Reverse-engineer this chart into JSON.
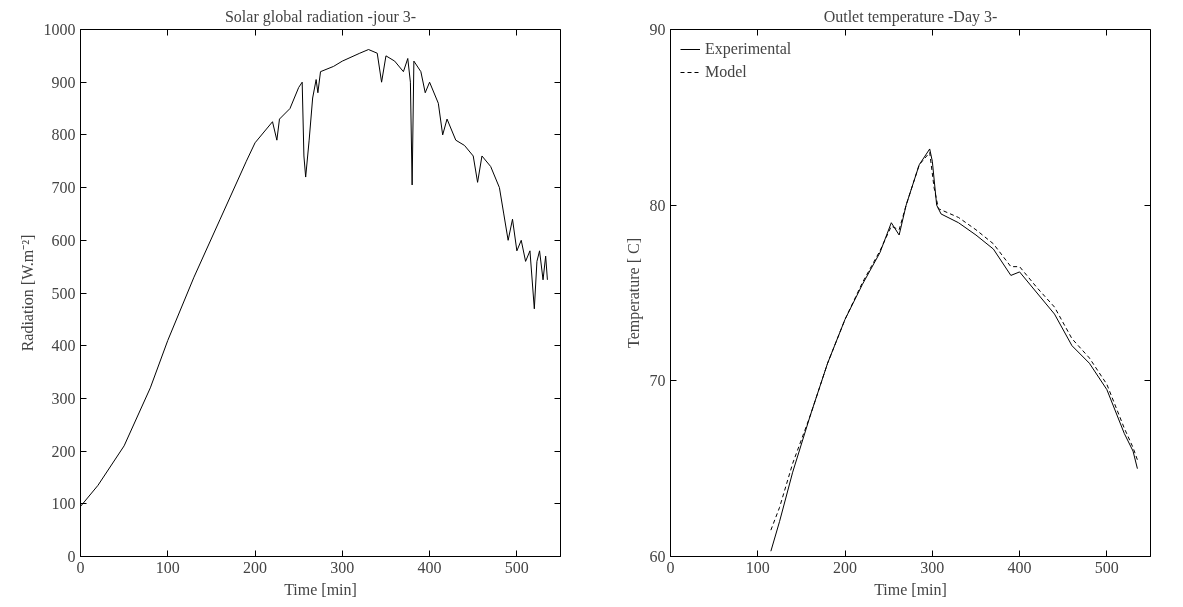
{
  "chart_data": [
    {
      "type": "line",
      "title": "Solar global radiation -jour 3-",
      "xlabel": "Time [min]",
      "ylabel": "Radiation [W.m⁻²]",
      "xlim": [
        0,
        550
      ],
      "xticks": [
        0,
        100,
        200,
        300,
        400,
        500
      ],
      "ylim": [
        0,
        1000
      ],
      "yticks": [
        0,
        100,
        200,
        300,
        400,
        500,
        600,
        700,
        800,
        900,
        1000
      ],
      "grid": false,
      "legend": false,
      "line_style": "solid",
      "series": [
        {
          "color": "#000000",
          "x": [
            0,
            20,
            50,
            80,
            100,
            130,
            160,
            190,
            200,
            220,
            225,
            228,
            240,
            250,
            254,
            256,
            258,
            262,
            266,
            270,
            272,
            275,
            290,
            300,
            320,
            330,
            340,
            345,
            350,
            360,
            370,
            375,
            378,
            380,
            382,
            390,
            395,
            400,
            410,
            415,
            420,
            430,
            440,
            450,
            455,
            460,
            470,
            480,
            485,
            490,
            495,
            500,
            505,
            510,
            515,
            520,
            523,
            526,
            530,
            533,
            535
          ],
          "values": [
            95,
            135,
            210,
            320,
            410,
            530,
            640,
            750,
            785,
            825,
            790,
            830,
            850,
            890,
            900,
            760,
            720,
            790,
            870,
            905,
            880,
            920,
            930,
            940,
            955,
            962,
            955,
            900,
            950,
            940,
            920,
            945,
            900,
            705,
            940,
            920,
            880,
            900,
            860,
            800,
            830,
            790,
            780,
            760,
            710,
            760,
            740,
            700,
            650,
            600,
            640,
            580,
            600,
            560,
            580,
            470,
            560,
            580,
            525,
            570,
            525
          ]
        }
      ]
    },
    {
      "type": "line",
      "title": "Outlet temperature -Day 3-",
      "xlabel": "Time [min]",
      "ylabel": "Temperature [ C]",
      "xlim": [
        0,
        550
      ],
      "xticks": [
        0,
        100,
        200,
        300,
        400,
        500
      ],
      "ylim": [
        60,
        90
      ],
      "yticks": [
        60,
        70,
        80,
        90
      ],
      "grid": false,
      "legend": "top left",
      "series": [
        {
          "name": "Experimental",
          "color": "#000000",
          "line_style": "solid",
          "x": [
            115,
            125,
            140,
            160,
            180,
            200,
            220,
            240,
            253,
            262,
            270,
            285,
            297,
            300,
            305,
            310,
            330,
            350,
            370,
            390,
            400,
            420,
            440,
            460,
            480,
            500,
            520,
            530,
            535
          ],
          "values": [
            60.3,
            62,
            64.8,
            68,
            71,
            73.5,
            75.5,
            77.3,
            79,
            78.3,
            80,
            82.3,
            83.2,
            82.5,
            80,
            79.5,
            79,
            78.3,
            77.5,
            76,
            76.2,
            75,
            73.8,
            72,
            71,
            69.5,
            67,
            66,
            65
          ]
        },
        {
          "name": "Model",
          "color": "#000000",
          "line_style": "dashed",
          "x": [
            115,
            125,
            140,
            160,
            180,
            200,
            220,
            240,
            253,
            262,
            270,
            285,
            297,
            302,
            307,
            330,
            350,
            370,
            390,
            400,
            420,
            440,
            460,
            480,
            500,
            520,
            530,
            535
          ],
          "values": [
            61.5,
            62.8,
            65.3,
            68,
            71,
            73.5,
            75.6,
            77.4,
            78.8,
            78.6,
            80,
            82.3,
            83,
            81,
            79.8,
            79.3,
            78.6,
            77.8,
            76.5,
            76.5,
            75.3,
            74.2,
            72.4,
            71.3,
            69.8,
            67.3,
            66.2,
            65.5
          ]
        }
      ]
    }
  ]
}
